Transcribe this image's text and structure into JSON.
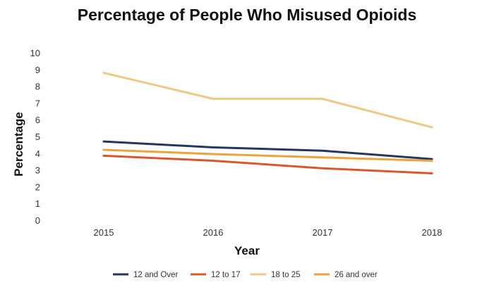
{
  "chart_data": {
    "type": "line",
    "title": "Percentage of People Who Misused Opioids",
    "xlabel": "Year",
    "ylabel": "Percentage",
    "x": [
      "2015",
      "2016",
      "2017",
      "2018"
    ],
    "ylim": [
      0,
      10
    ],
    "yticks": [
      "0",
      "1",
      "2",
      "3",
      "4",
      "5",
      "6",
      "7",
      "8",
      "9",
      "10"
    ],
    "grid": false,
    "legend": "bottom",
    "series": [
      {
        "name": "12 and Over",
        "color": "#26365c",
        "values": [
          4.7,
          4.35,
          4.15,
          3.65
        ]
      },
      {
        "name": "12 to 17",
        "color": "#d9572f",
        "values": [
          3.85,
          3.55,
          3.1,
          2.8
        ]
      },
      {
        "name": "18 to 25",
        "color": "#ecc984",
        "values": [
          8.8,
          7.25,
          7.25,
          5.55
        ]
      },
      {
        "name": "26 and over",
        "color": "#eba33c",
        "values": [
          4.2,
          3.95,
          3.75,
          3.55
        ]
      }
    ]
  }
}
